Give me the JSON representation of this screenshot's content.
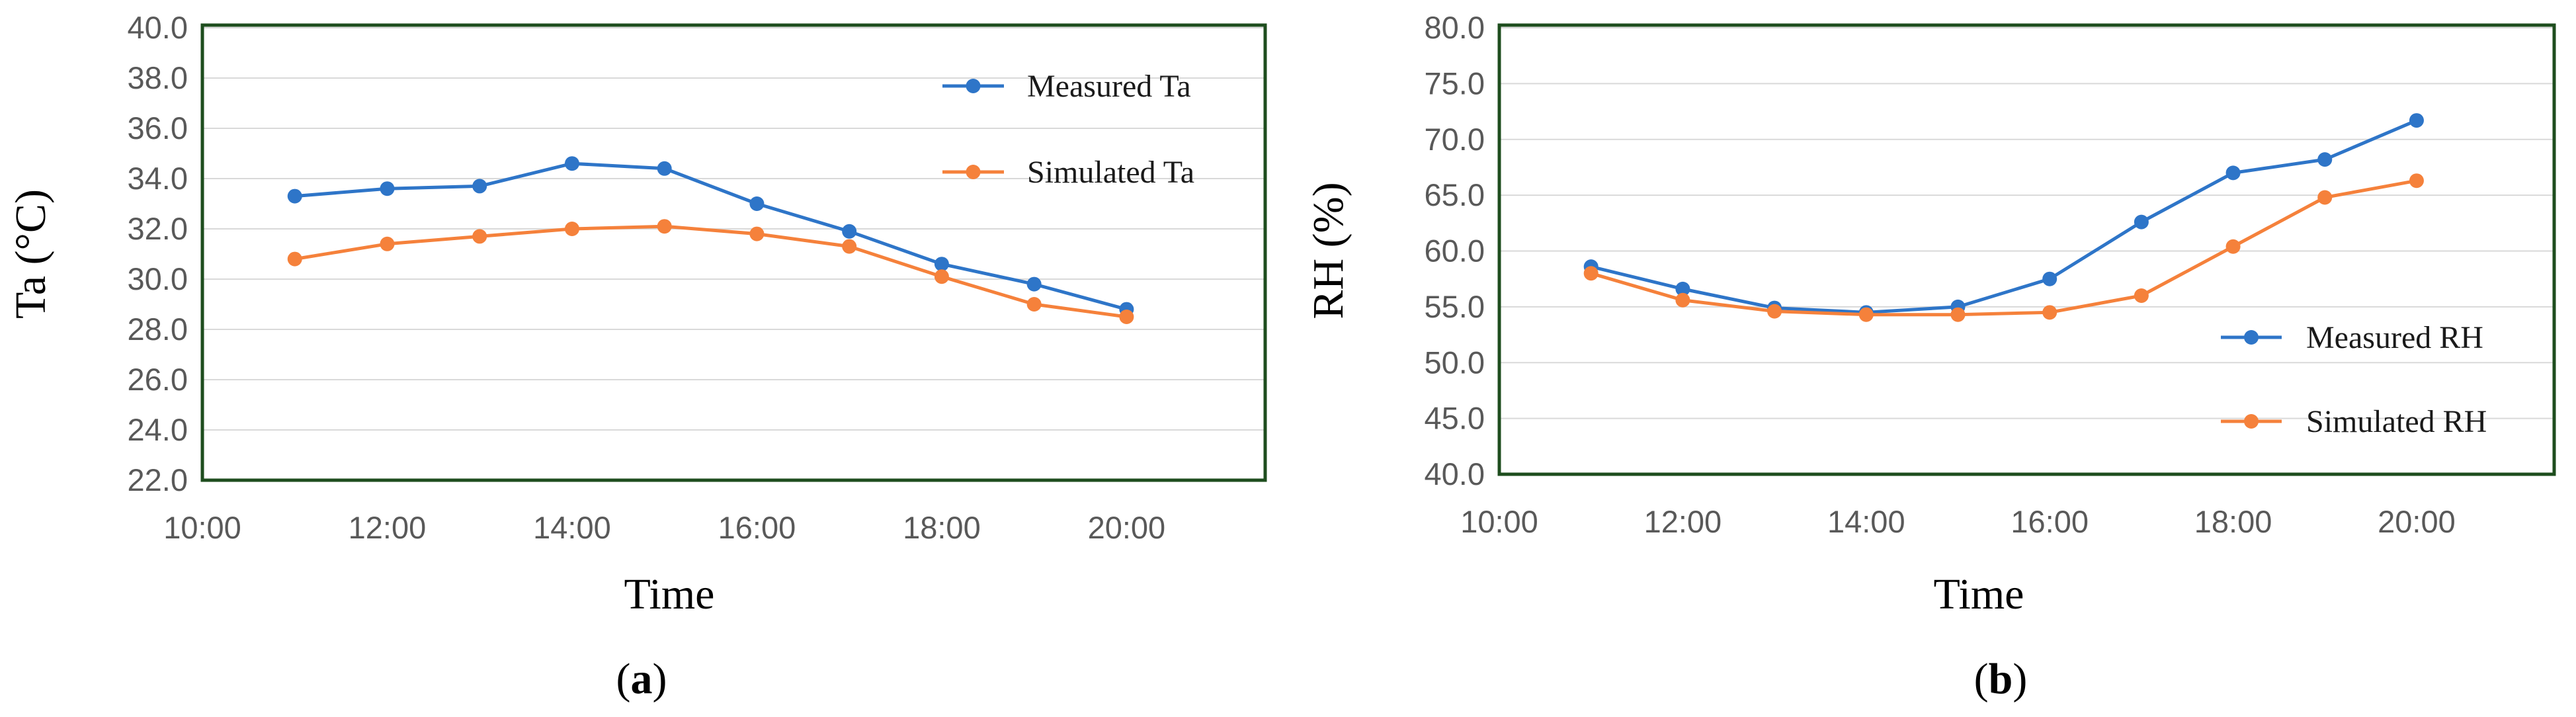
{
  "chart_data": [
    {
      "type": "line",
      "panel_label": "a",
      "title": "",
      "xlabel": "Time",
      "ylabel": "Ta (°C)",
      "xlim": [
        10,
        21.5
      ],
      "ylim": [
        22,
        40
      ],
      "x_ticks": [
        10,
        12,
        14,
        16,
        18,
        20
      ],
      "x_tick_labels": [
        "10:00",
        "12:00",
        "14:00",
        "16:00",
        "18:00",
        "20:00"
      ],
      "y_ticks": [
        22,
        24,
        26,
        28,
        30,
        32,
        34,
        36,
        38,
        40
      ],
      "y_tick_labels": [
        "22.0",
        "24.0",
        "26.0",
        "28.0",
        "30.0",
        "32.0",
        "34.0",
        "36.0",
        "38.0",
        "40.0"
      ],
      "grid": true,
      "legend_position": "top-right",
      "x": [
        11,
        12,
        13,
        14,
        15,
        16,
        17,
        18,
        19,
        20
      ],
      "series": [
        {
          "name": "Measured Ta",
          "color": "#2e75c8",
          "values": [
            33.3,
            33.6,
            33.7,
            34.6,
            34.4,
            33.0,
            31.9,
            30.6,
            29.8,
            28.8
          ]
        },
        {
          "name": "Simulated Ta",
          "color": "#f5813b",
          "values": [
            30.8,
            31.4,
            31.7,
            32.0,
            32.1,
            31.8,
            31.3,
            30.1,
            29.0,
            28.5
          ]
        }
      ]
    },
    {
      "type": "line",
      "panel_label": "b",
      "title": "",
      "xlabel": "Time",
      "ylabel": "RH (%)",
      "xlim": [
        10,
        21.5
      ],
      "ylim": [
        40,
        80
      ],
      "x_ticks": [
        10,
        12,
        14,
        16,
        18,
        20
      ],
      "x_tick_labels": [
        "10:00",
        "12:00",
        "14:00",
        "16:00",
        "18:00",
        "20:00"
      ],
      "y_ticks": [
        40,
        45,
        50,
        55,
        60,
        65,
        70,
        75,
        80
      ],
      "y_tick_labels": [
        "40.0",
        "45.0",
        "50.0",
        "55.0",
        "60.0",
        "65.0",
        "70.0",
        "75.0",
        "80.0"
      ],
      "grid": true,
      "legend_position": "bottom-right",
      "x": [
        11,
        12,
        13,
        14,
        15,
        16,
        17,
        18,
        19,
        20
      ],
      "series": [
        {
          "name": "Measured RH",
          "color": "#2e75c8",
          "values": [
            58.6,
            56.6,
            54.9,
            54.5,
            55.0,
            57.5,
            62.6,
            67.0,
            68.2,
            71.7
          ]
        },
        {
          "name": "Simulated RH",
          "color": "#f5813b",
          "values": [
            58.0,
            55.6,
            54.6,
            54.3,
            54.3,
            54.5,
            56.0,
            60.4,
            64.8,
            66.3
          ]
        }
      ]
    }
  ],
  "frame_color": "#1e4d1e",
  "grid_color": "#d9d9d9"
}
